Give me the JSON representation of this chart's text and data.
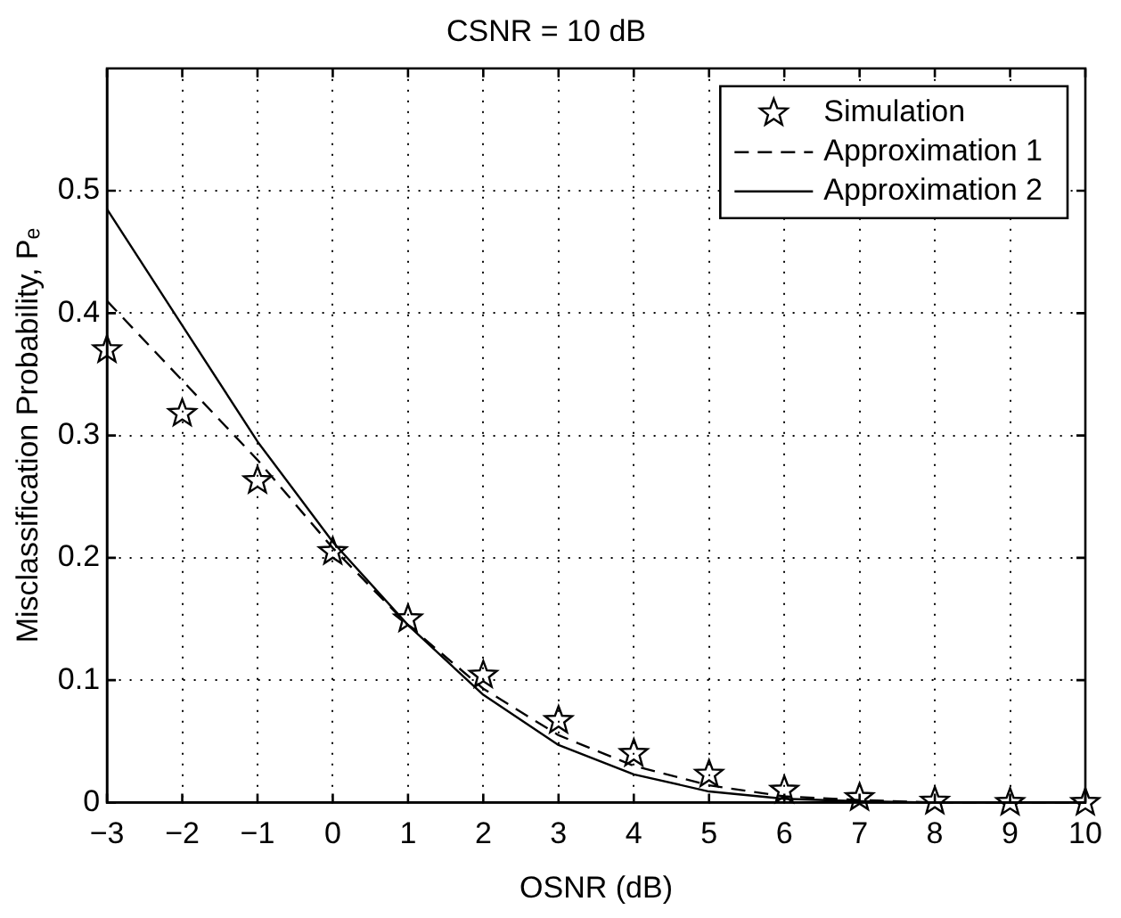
{
  "chart_data": {
    "type": "line",
    "title": "CSNR = 10 dB",
    "xlabel": "OSNR (dB)",
    "ylabel": "Misclassification Probability, Pₑ",
    "x": [
      -3,
      -2,
      -1,
      0,
      1,
      2,
      3,
      4,
      5,
      6,
      7,
      8,
      9,
      10
    ],
    "series": [
      {
        "name": "Simulation",
        "type": "scatter",
        "color": "#000000",
        "marker": "star",
        "values": [
          0.37,
          0.318,
          0.263,
          0.205,
          0.15,
          0.104,
          0.067,
          0.04,
          0.023,
          0.01,
          0.004,
          0.001,
          0,
          0
        ]
      },
      {
        "name": "Approximation 1",
        "color": "#000000",
        "line_style": "dashed",
        "marker": "none",
        "values": [
          0.41,
          0.345,
          0.28,
          0.208,
          0.145,
          0.093,
          0.055,
          0.03,
          0.014,
          0.005,
          0.002,
          0,
          0,
          0
        ]
      },
      {
        "name": "Approximation 2",
        "color": "#000000",
        "line_style": "solid",
        "marker": "none",
        "values": [
          0.485,
          0.39,
          0.295,
          0.213,
          0.145,
          0.088,
          0.047,
          0.023,
          0.009,
          0.003,
          0.001,
          0,
          0,
          0
        ]
      }
    ],
    "xlim": [
      -3,
      10
    ],
    "xticks": [
      -3,
      -2,
      -1,
      0,
      1,
      2,
      3,
      4,
      5,
      6,
      7,
      8,
      9,
      10
    ],
    "ylim": [
      0,
      0.6
    ],
    "yticks": [
      0,
      0.1,
      0.2,
      0.3,
      0.4,
      0.5
    ],
    "grid": true,
    "legend": "top right"
  }
}
